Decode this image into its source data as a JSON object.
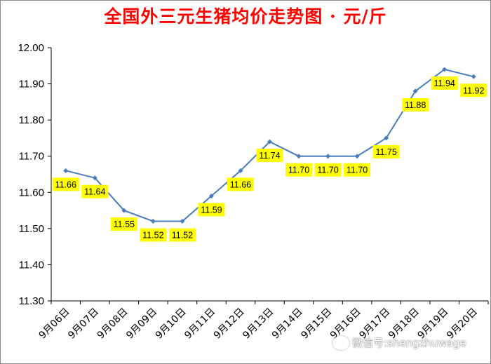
{
  "title": "全国外三元生猪均价走势图 · 元/斤",
  "colors": {
    "title": "#ff0000",
    "line": "#4a7ebb",
    "label_bg": "#ffff00",
    "axis": "#000000"
  },
  "watermark": "微信号:shengzhuwage",
  "chart_data": {
    "type": "line",
    "title": "全国外三元生猪均价走势图 · 元/斤",
    "categories": [
      "9月06日",
      "9月07日",
      "9月08日",
      "9月09日",
      "9月10日",
      "9月11日",
      "9月12日",
      "9月13日",
      "9月14日",
      "9月15日",
      "9月16日",
      "9月17日",
      "9月18日",
      "9月19日",
      "9月20日"
    ],
    "series": [
      {
        "values": [
          11.66,
          11.64,
          11.55,
          11.52,
          11.52,
          11.59,
          11.66,
          11.74,
          11.7,
          11.7,
          11.7,
          11.75,
          11.88,
          11.94,
          11.92
        ]
      }
    ],
    "data_labels": [
      "11.66",
      "11.64",
      "11.55",
      "11.52",
      "11.52",
      "11.59",
      "11.66",
      "11.74",
      "11.70",
      "11.70",
      "11.70",
      "11.75",
      "11.88",
      "11.94",
      "11.92"
    ],
    "ylim": [
      11.3,
      12.0
    ],
    "yticks": [
      "11.30",
      "11.40",
      "11.50",
      "11.60",
      "11.70",
      "11.80",
      "11.90",
      "12.00"
    ],
    "xlabel": "",
    "ylabel": "",
    "grid": false,
    "legend": "none"
  }
}
